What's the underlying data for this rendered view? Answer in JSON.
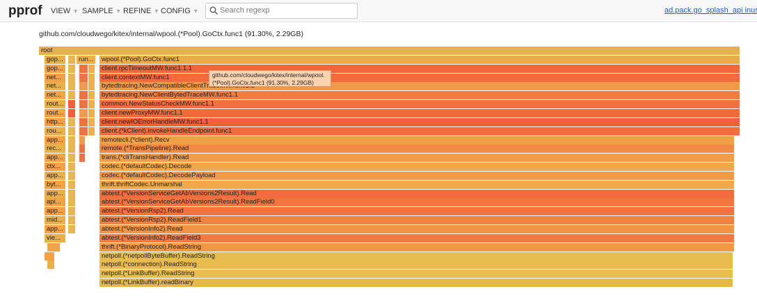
{
  "header": {
    "logo": "pprof",
    "menus": [
      "VIEW",
      "SAMPLE",
      "REFINE",
      "CONFIG"
    ],
    "search_placeholder": "Search regexp",
    "profile_link": "ad.pack.go_splash_api inuse_sp"
  },
  "subtitle": "github.com/cloudwego/kitex/internal/wpool.(*Pool).GoCtx.func1 (91.30%, 2.29GB)",
  "flame": {
    "root": "root",
    "side": "run...",
    "rows": [
      {
        "left": "gop...",
        "main": "wpool.(*Pool).GoCtx.func1"
      },
      {
        "left": "gop...",
        "main": "client.rpcTimeoutMW.func1.1.1"
      },
      {
        "left": "net...",
        "main": "client.contextMW.func1"
      },
      {
        "left": "net...",
        "main": "bytedtracing.NewCompatibleClientTraceMW.func1.1"
      },
      {
        "left": "net...",
        "main": "bytedtracing.NewClientBytedTraceMW.func1.1"
      },
      {
        "left": "rout...",
        "main": "common.NewStatusCheckMW.func1.1"
      },
      {
        "left": "rout...",
        "main": "client.newProxyMW.func1.1"
      },
      {
        "left": "http...",
        "main": "client.newIOErrorHandleMW.func1.1"
      },
      {
        "left": "rou...",
        "main": "client.(*kClient).invokeHandleEndpoint.func1"
      },
      {
        "left": "app...",
        "main": "remotecli.(*client).Recv"
      },
      {
        "left": "rec...",
        "main": "remote.(*TransPipeline).Read"
      },
      {
        "left": "app...",
        "main": "trans.(*cliTransHandler).Read"
      },
      {
        "left": "ctx...",
        "main": "codec.(*defaultCodec).Decode"
      },
      {
        "left": "app...",
        "main": "codec.(*defaultCodec).DecodePayload"
      },
      {
        "left": "byt...",
        "main": "thrift.thriftCodec.Unmarshal"
      },
      {
        "left": "app...",
        "main": "abtest.(*VersionServiceGetAbVersions2Result).Read"
      },
      {
        "left": "api...",
        "main": "abtest.(*VersionServiceGetAbVersions2Result).ReadField0"
      },
      {
        "left": "app...",
        "main": "abtest.(*VersionRsp2).Read"
      },
      {
        "left": "mid...",
        "main": "abtest.(*VersionRsp2).ReadField1"
      },
      {
        "left": "app...",
        "main": "abtest.(*VersionInfo2).Read"
      },
      {
        "left": "vie...",
        "main": "abtest.(*VersionInfo2).ReadField3"
      },
      {
        "main": "thrift.(*BinaryProtocol).ReadString"
      },
      {
        "main": "netpoll.(*netpollByteBuffer).ReadString"
      },
      {
        "main": "netpoll.(*connection).ReadString"
      },
      {
        "main": "netpoll.(*LinkBuffer).ReadString"
      },
      {
        "main": "netpoll.(*LinkBuffer).readBinary"
      }
    ]
  },
  "tooltip": [
    "github.com/cloudwego/kitex/internal/wpool.",
    "(*Pool).GoCtx.func1 (91.30%, 2.29GB)"
  ]
}
